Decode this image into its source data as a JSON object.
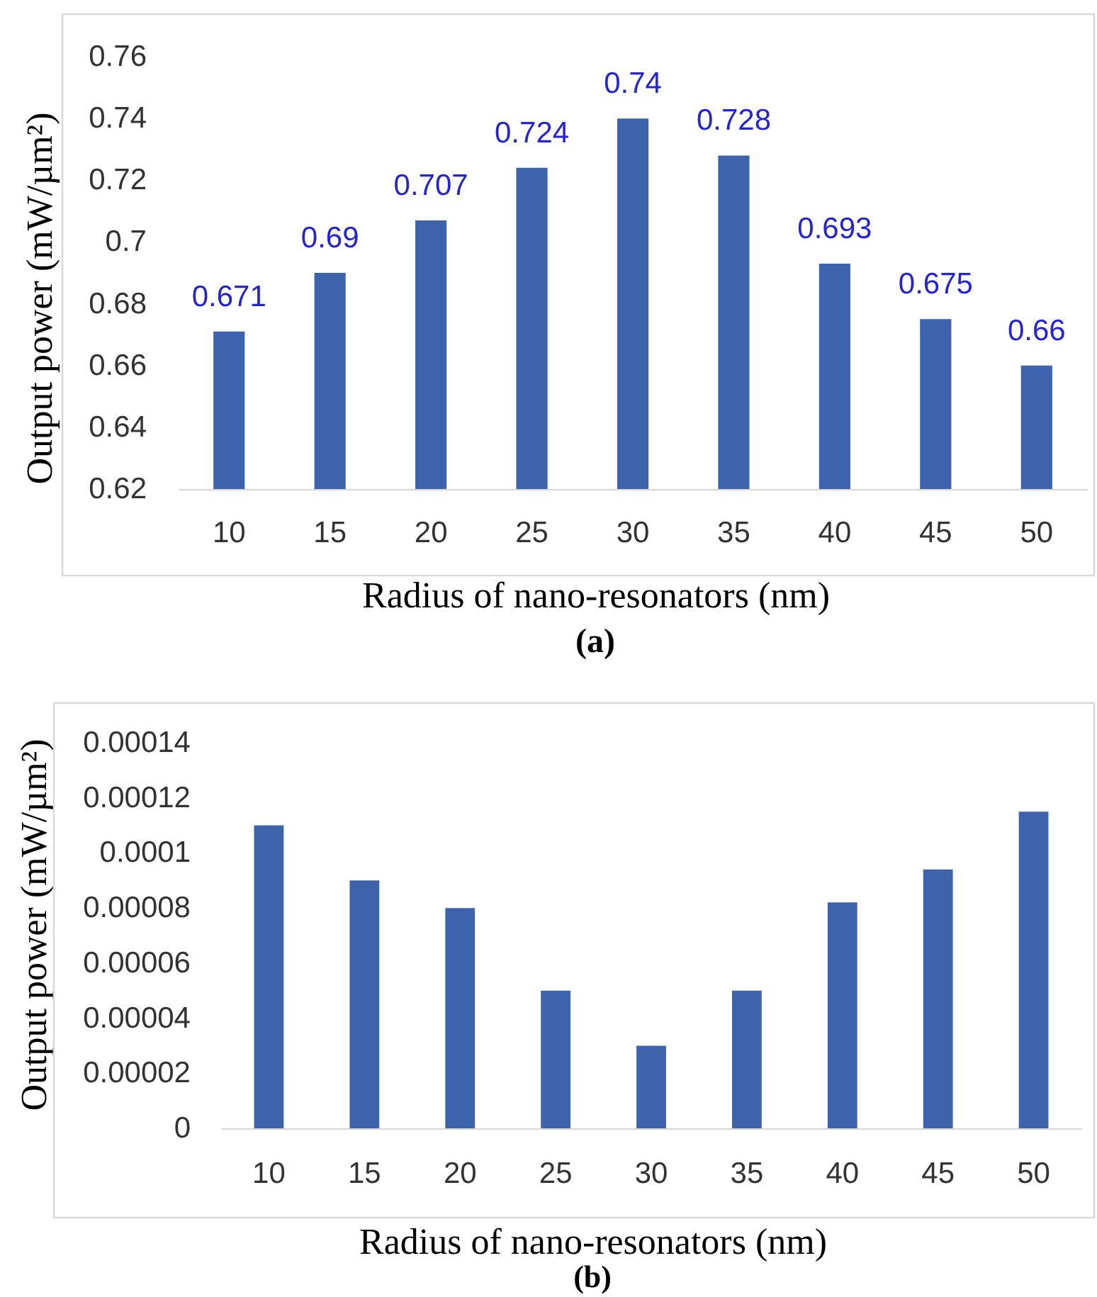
{
  "chart_data": [
    {
      "type": "bar",
      "xlabel": "Radius of nano-resonators (nm)",
      "ylabel": "Output power (mW/µm²)",
      "categories": [
        "10",
        "15",
        "20",
        "25",
        "30",
        "35",
        "40",
        "45",
        "50"
      ],
      "values": [
        0.671,
        0.69,
        0.707,
        0.724,
        0.74,
        0.728,
        0.693,
        0.675,
        0.66
      ],
      "color": "#3c63ab",
      "data_labels": true,
      "ylim": [
        0.62,
        0.76
      ],
      "yticks": [
        0.62,
        0.64,
        0.66,
        0.68,
        0.7,
        0.72,
        0.74,
        0.76
      ],
      "annotations": [
        "(a)"
      ]
    },
    {
      "type": "bar",
      "xlabel": "Radius of nano-resonators (nm)",
      "ylabel": "Output power (mW/µm²)",
      "categories": [
        "10",
        "15",
        "20",
        "25",
        "30",
        "35",
        "40",
        "45",
        "50"
      ],
      "values": [
        0.00011,
        9e-05,
        8e-05,
        5e-05,
        3e-05,
        5e-05,
        8.2e-05,
        9.4e-05,
        0.000115
      ],
      "color": "#3c63ab",
      "ylim": [
        0,
        0.00014
      ],
      "yticks": [
        0,
        {
          "value": 2e-05,
          "label": "0.00002"
        },
        {
          "value": 4e-05,
          "label": "0.00004"
        },
        {
          "value": 6e-05,
          "label": "0.00006"
        },
        {
          "value": 8e-05,
          "label": "0.00008"
        },
        0.0001,
        0.00012,
        0.00014
      ],
      "annotations": [
        "(b)"
      ]
    }
  ]
}
